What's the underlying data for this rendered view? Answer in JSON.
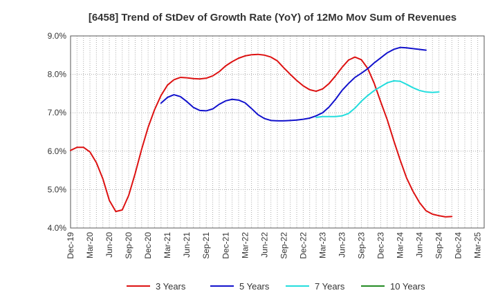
{
  "chart_data": {
    "type": "line",
    "title": "[6458]  Trend of StDev of Growth Rate (YoY) of 12Mo Mov Sum of Revenues",
    "xlabel": "",
    "ylabel": "",
    "ylim": [
      4.0,
      9.0
    ],
    "y_ticks": [
      "4.0%",
      "5.0%",
      "6.0%",
      "7.0%",
      "8.0%",
      "9.0%"
    ],
    "y_tick_values": [
      4.0,
      5.0,
      6.0,
      7.0,
      8.0,
      9.0
    ],
    "x_ticks": [
      "Dec-19",
      "Mar-20",
      "Jun-20",
      "Sep-20",
      "Dec-20",
      "Mar-21",
      "Jun-21",
      "Sep-21",
      "Dec-21",
      "Mar-22",
      "Jun-22",
      "Sep-22",
      "Dec-22",
      "Mar-23",
      "Jun-23",
      "Sep-23",
      "Dec-23",
      "Mar-24",
      "Jun-24",
      "Sep-24",
      "Dec-24",
      "Mar-25"
    ],
    "x_count": 65,
    "grid": true,
    "legend_position": "bottom",
    "series": [
      {
        "name": "3 Years",
        "color": "#dd1111",
        "start": 0,
        "values": [
          6.02,
          6.1,
          6.1,
          5.98,
          5.7,
          5.28,
          4.72,
          4.43,
          4.47,
          4.85,
          5.42,
          6.05,
          6.62,
          7.08,
          7.45,
          7.72,
          7.86,
          7.92,
          7.91,
          7.89,
          7.88,
          7.9,
          7.96,
          8.07,
          8.22,
          8.33,
          8.42,
          8.48,
          8.51,
          8.52,
          8.5,
          8.45,
          8.35,
          8.17,
          8.0,
          7.84,
          7.7,
          7.6,
          7.56,
          7.62,
          7.76,
          7.96,
          8.18,
          8.37,
          8.45,
          8.38,
          8.15,
          7.76,
          7.28,
          6.82,
          6.28,
          5.77,
          5.3,
          4.95,
          4.66,
          4.45,
          4.36,
          4.32,
          4.29,
          4.3
        ]
      },
      {
        "name": "5 Years",
        "color": "#1111cc",
        "start": 14,
        "values": [
          7.25,
          7.4,
          7.47,
          7.42,
          7.29,
          7.14,
          7.06,
          7.05,
          7.1,
          7.22,
          7.31,
          7.35,
          7.33,
          7.26,
          7.11,
          6.95,
          6.85,
          6.8,
          6.79,
          6.79,
          6.8,
          6.81,
          6.83,
          6.86,
          6.92,
          7.0,
          7.15,
          7.35,
          7.58,
          7.76,
          7.92,
          8.03,
          8.15,
          8.3,
          8.43,
          8.56,
          8.65,
          8.7,
          8.69,
          8.67,
          8.65,
          8.63
        ]
      },
      {
        "name": "7 Years",
        "color": "#22dddd",
        "start": 38,
        "values": [
          6.88,
          6.9,
          6.9,
          6.9,
          6.92,
          6.98,
          7.12,
          7.3,
          7.45,
          7.58,
          7.68,
          7.78,
          7.83,
          7.82,
          7.74,
          7.65,
          7.58,
          7.54,
          7.53,
          7.54
        ]
      },
      {
        "name": "10 Years",
        "color": "#228b22",
        "start": 0,
        "values": []
      }
    ]
  }
}
